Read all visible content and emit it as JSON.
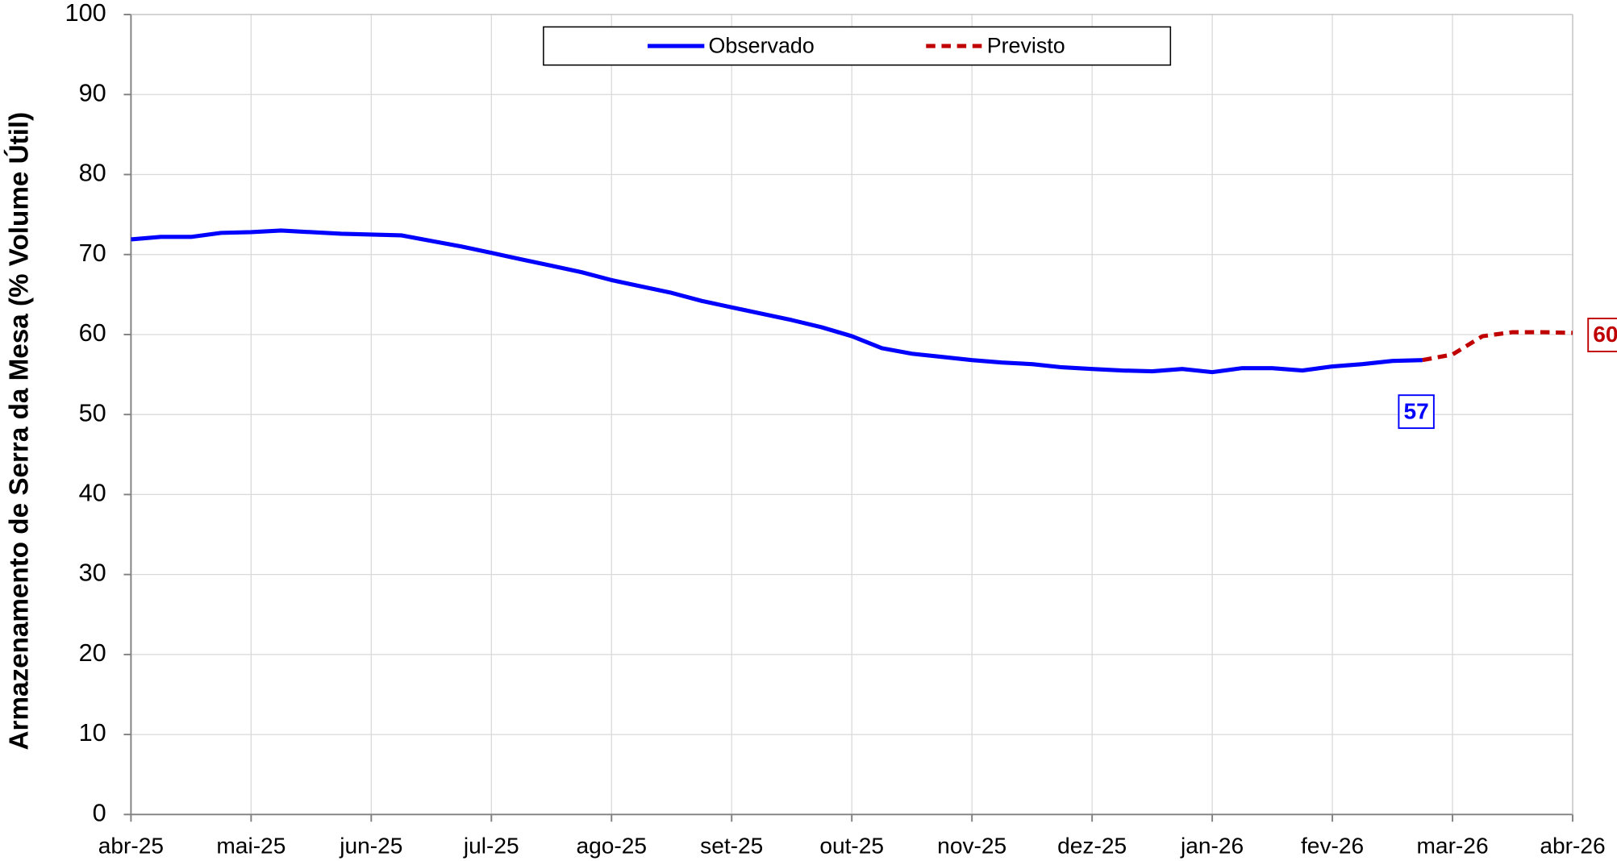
{
  "chart_data": {
    "type": "line",
    "y_label": "Armazenamento de Serra da Mesa (% Volume Útil)",
    "x": [
      "abr-25",
      null,
      null,
      null,
      "mai-25",
      null,
      null,
      null,
      "jun-25",
      null,
      null,
      null,
      "jul-25",
      null,
      null,
      null,
      "ago-25",
      null,
      null,
      null,
      "set-25",
      null,
      null,
      null,
      "out-25",
      null,
      null,
      null,
      "nov-25",
      null,
      null,
      null,
      "dez-25",
      null,
      null,
      null,
      "jan-26",
      null,
      null,
      null,
      "fev-26",
      null,
      null,
      null,
      "mar-26",
      null,
      null,
      null,
      "abr-26"
    ],
    "series": [
      {
        "name": "Observado",
        "color": "#0000ff",
        "style": "solid",
        "values": [
          71.9,
          72.2,
          72.2,
          72.7,
          72.8,
          73.0,
          72.8,
          72.6,
          72.5,
          72.4,
          71.7,
          71.0,
          70.2,
          69.4,
          68.6,
          67.8,
          66.8,
          66.0,
          65.2,
          64.2,
          63.4,
          62.6,
          61.8,
          60.9,
          59.8,
          58.3,
          57.6,
          57.2,
          56.8,
          56.5,
          56.3,
          55.9,
          55.7,
          55.5,
          55.4,
          55.7,
          55.3,
          55.8,
          55.8,
          55.5,
          56.0,
          56.3,
          56.7,
          56.8,
          null,
          null,
          null,
          null,
          null
        ],
        "value_labels": [
          null,
          null,
          null,
          null,
          null,
          null,
          null,
          null,
          null,
          null,
          null,
          null,
          null,
          null,
          null,
          null,
          null,
          null,
          null,
          null,
          null,
          null,
          null,
          null,
          null,
          null,
          null,
          null,
          null,
          null,
          null,
          null,
          null,
          null,
          null,
          null,
          null,
          null,
          null,
          null,
          null,
          null,
          null,
          "57",
          null,
          null,
          null,
          null,
          null
        ]
      },
      {
        "name": "Previsto",
        "color": "#c00000",
        "style": "dashed",
        "values": [
          null,
          null,
          null,
          null,
          null,
          null,
          null,
          null,
          null,
          null,
          null,
          null,
          null,
          null,
          null,
          null,
          null,
          null,
          null,
          null,
          null,
          null,
          null,
          null,
          null,
          null,
          null,
          null,
          null,
          null,
          null,
          null,
          null,
          null,
          null,
          null,
          null,
          null,
          null,
          null,
          null,
          null,
          null,
          56.8,
          57.5,
          59.8,
          60.3,
          60.3,
          60.2
        ],
        "value_labels": [
          null,
          null,
          null,
          null,
          null,
          null,
          null,
          null,
          null,
          null,
          null,
          null,
          null,
          null,
          null,
          null,
          null,
          null,
          null,
          null,
          null,
          null,
          null,
          null,
          null,
          null,
          null,
          null,
          null,
          null,
          null,
          null,
          null,
          null,
          null,
          null,
          null,
          null,
          null,
          null,
          null,
          null,
          null,
          null,
          null,
          null,
          null,
          null,
          "60"
        ]
      }
    ],
    "ylim": [
      0,
      100
    ],
    "yticks": [
      0,
      10,
      20,
      30,
      40,
      50,
      60,
      70,
      80,
      90,
      100
    ],
    "grid": true,
    "legend": "top"
  }
}
